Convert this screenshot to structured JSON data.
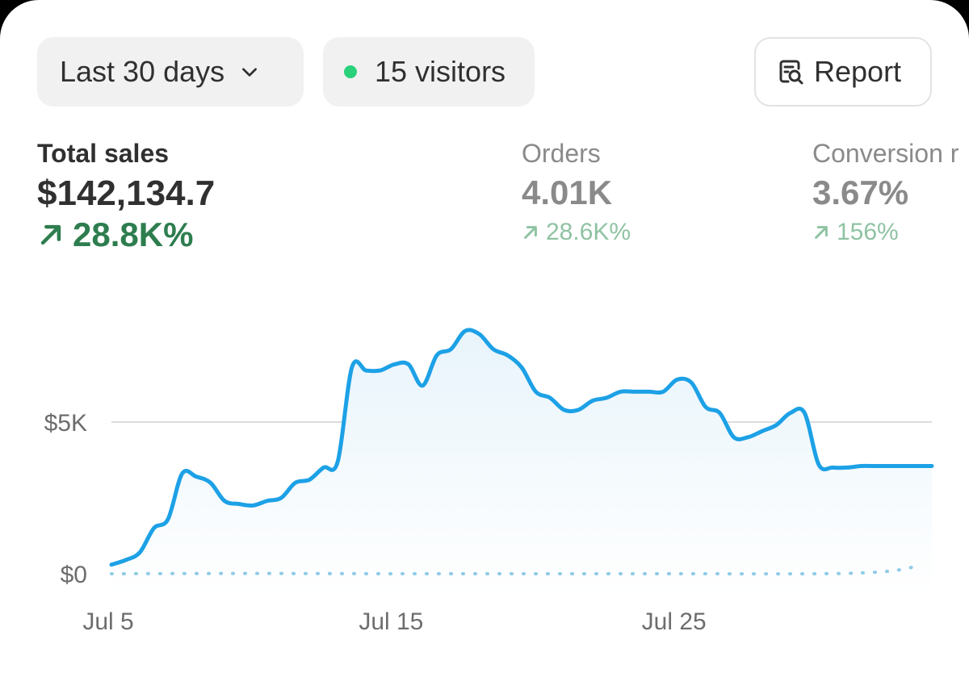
{
  "filters": {
    "date_range": "Last 30 days",
    "visitors": "15 visitors",
    "visitors_dot_color": "#29d17a",
    "report_label": "Report",
    "report_icon": "report-search-icon",
    "date_icon": "chevron-down-icon"
  },
  "metrics": {
    "total_sales": {
      "label": "Total sales",
      "value": "$142,134.7",
      "change": "28.8K%"
    },
    "orders": {
      "label": "Orders",
      "value": "4.01K",
      "change": "28.6K%"
    },
    "conversion": {
      "label": "Conversion r",
      "value": "3.67%",
      "change": "156%"
    }
  },
  "chart_data": {
    "type": "line",
    "title": "",
    "xlabel": "",
    "ylabel": "",
    "x_tick_labels": [
      "Jul 5",
      "Jul 15",
      "Jul 25"
    ],
    "y_tick_labels": [
      "$5K",
      "$0"
    ],
    "ylim": [
      0,
      10000
    ],
    "grid": "horizontal",
    "accent_color": "#1da1e6",
    "series": [
      {
        "style": "solid",
        "x": [
          "Jul 5",
          "Jul 5",
          "Jul 6",
          "Jul 6",
          "Jul 7",
          "Jul 7",
          "Jul 8",
          "Jul 8",
          "Jul 9",
          "Jul 9",
          "Jul 10",
          "Jul 10",
          "Jul 11",
          "Jul 11",
          "Jul 12",
          "Jul 12",
          "Jul 13",
          "Jul 13",
          "Jul 14",
          "Jul 14",
          "Jul 15",
          "Jul 15",
          "Jul 16",
          "Jul 16",
          "Jul 17",
          "Jul 17",
          "Jul 18",
          "Jul 18",
          "Jul 19",
          "Jul 19",
          "Jul 20",
          "Jul 20",
          "Jul 21",
          "Jul 21",
          "Jul 22",
          "Jul 22",
          "Jul 23",
          "Jul 23",
          "Jul 24",
          "Jul 24",
          "Jul 25",
          "Jul 25",
          "Jul 26",
          "Jul 26",
          "Jul 27",
          "Jul 27",
          "Jul 28",
          "Jul 28",
          "Jul 29",
          "Jul 29",
          "Jul 30",
          "Jul 30",
          "Jul 31",
          "Jul 31",
          "Aug 1",
          "Aug 1",
          "Aug 2",
          "Aug 2",
          "Aug 3"
        ],
        "values": [
          300,
          450,
          700,
          1500,
          1800,
          3300,
          3200,
          3000,
          2400,
          2300,
          2250,
          2400,
          2500,
          3000,
          3100,
          3500,
          3700,
          6800,
          6700,
          6700,
          6900,
          6900,
          6200,
          7200,
          7400,
          8000,
          7900,
          7400,
          7200,
          6800,
          6000,
          5800,
          5400,
          5400,
          5700,
          5800,
          6000,
          6000,
          6000,
          6000,
          6400,
          6300,
          5500,
          5300,
          4500,
          4500,
          4700,
          4900,
          5300,
          5300,
          3600,
          3500,
          3500,
          3550,
          3550,
          3550,
          3550,
          3550,
          3550
        ]
      },
      {
        "style": "dotted",
        "x": [
          "Jul 5",
          "Jul 10",
          "Jul 15",
          "Jul 20",
          "Jul 25",
          "Jul 30",
          "Aug 1",
          "Aug 2",
          "Aug 3"
        ],
        "values": [
          0,
          10,
          0,
          0,
          0,
          0,
          50,
          150,
          300
        ]
      }
    ]
  }
}
